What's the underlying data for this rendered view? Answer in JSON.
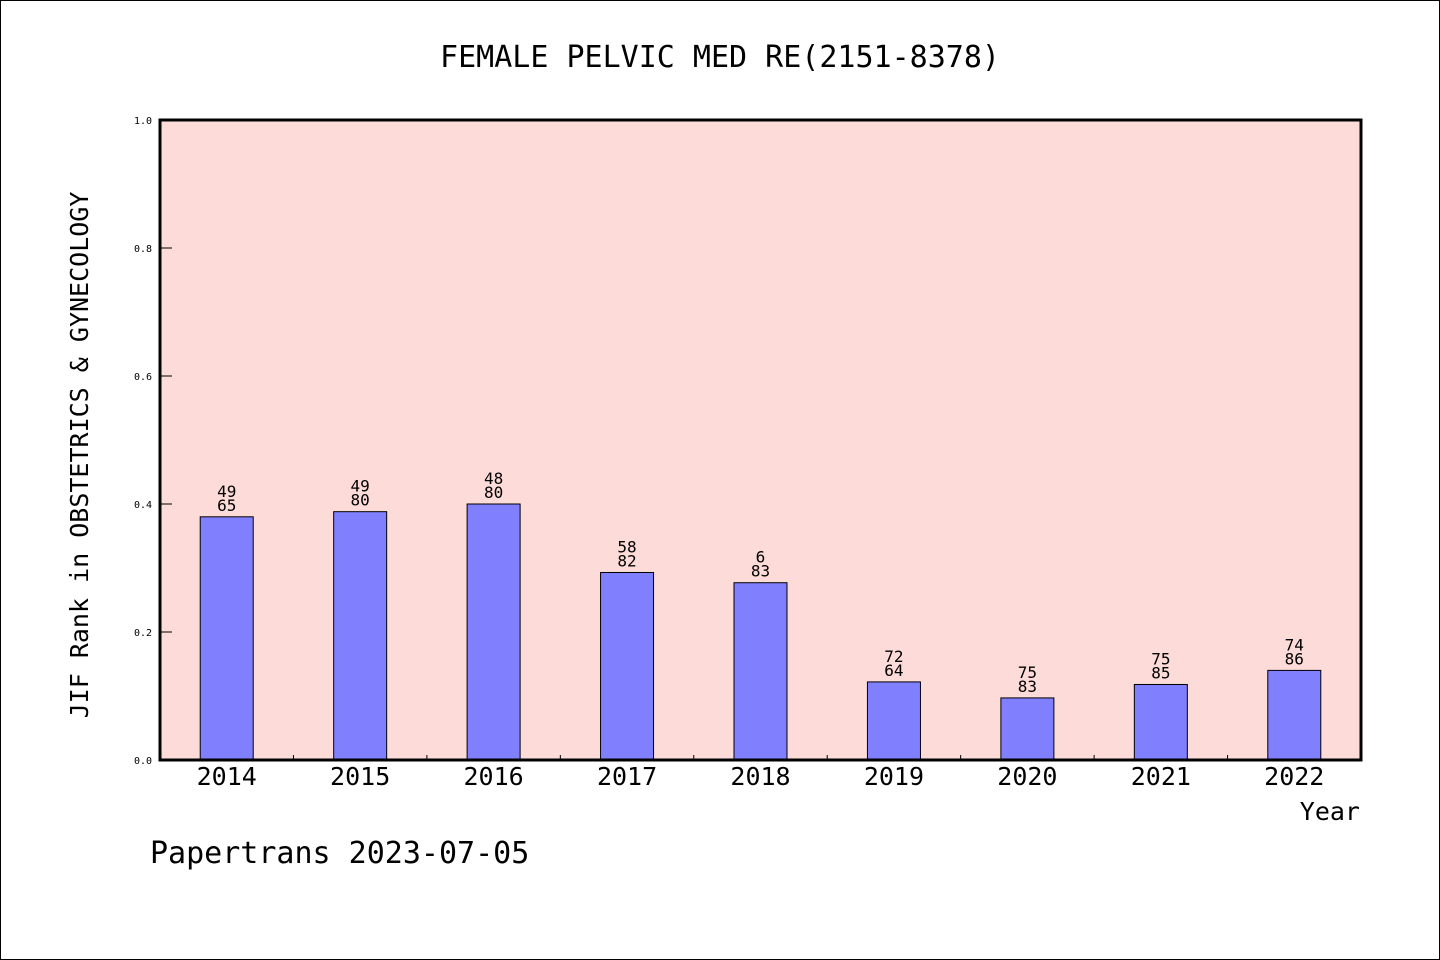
{
  "chart_data": {
    "type": "bar",
    "title": "FEMALE PELVIC MED RE(2151-8378)",
    "xlabel": "Year",
    "ylabel": "JIF Rank in OBSTETRICS & GYNECOLOGY",
    "ylim": [
      0,
      1.0
    ],
    "yticks": [
      "0.0",
      "0.2",
      "0.4",
      "0.6",
      "0.8",
      "1.0"
    ],
    "categories": [
      "2014",
      "2015",
      "2016",
      "2017",
      "2018",
      "2019",
      "2020",
      "2021",
      "2022"
    ],
    "values": [
      0.38,
      0.388,
      0.4,
      0.293,
      0.277,
      0.122,
      0.097,
      0.118,
      0.14
    ],
    "label_top": [
      "49",
      "49",
      "48",
      "58",
      "6",
      "72",
      "75",
      "75",
      "74"
    ],
    "label_bottom": [
      "65",
      "80",
      "80",
      "82",
      "83",
      "64",
      "83",
      "85",
      "86"
    ],
    "grid": false,
    "colors": {
      "plot_background": "#fddbd8",
      "bar_fill": "#8080ff",
      "bar_stroke": "#000000",
      "axis": "#000000"
    }
  },
  "footer": "Papertrans 2023-07-05"
}
